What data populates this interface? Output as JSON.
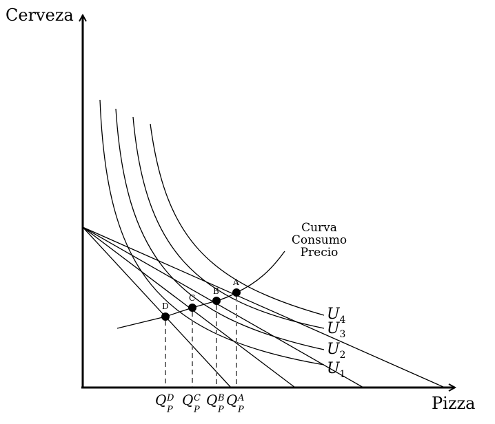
{
  "axes": {
    "y_label": "Cerveza",
    "x_label": "Pizza"
  },
  "curve_label": {
    "line1": "Curva",
    "line2": "Consumo",
    "line3": "Precio"
  },
  "indifference_curves": [
    {
      "letter": "U",
      "index": "4"
    },
    {
      "letter": "U",
      "index": "3"
    },
    {
      "letter": "U",
      "index": "2"
    },
    {
      "letter": "U",
      "index": "1"
    }
  ],
  "points": [
    {
      "label": "A"
    },
    {
      "label": "B"
    },
    {
      "label": "C"
    },
    {
      "label": "D"
    }
  ],
  "quantity_labels": [
    {
      "base": "Q",
      "sub": "P",
      "sup": "D"
    },
    {
      "base": "Q",
      "sub": "P",
      "sup": "C"
    },
    {
      "base": "Q",
      "sub": "P",
      "sup": "B"
    },
    {
      "base": "Q",
      "sub": "P",
      "sup": "A"
    }
  ],
  "colors": {
    "line": "#000000",
    "guide": "#707070"
  }
}
